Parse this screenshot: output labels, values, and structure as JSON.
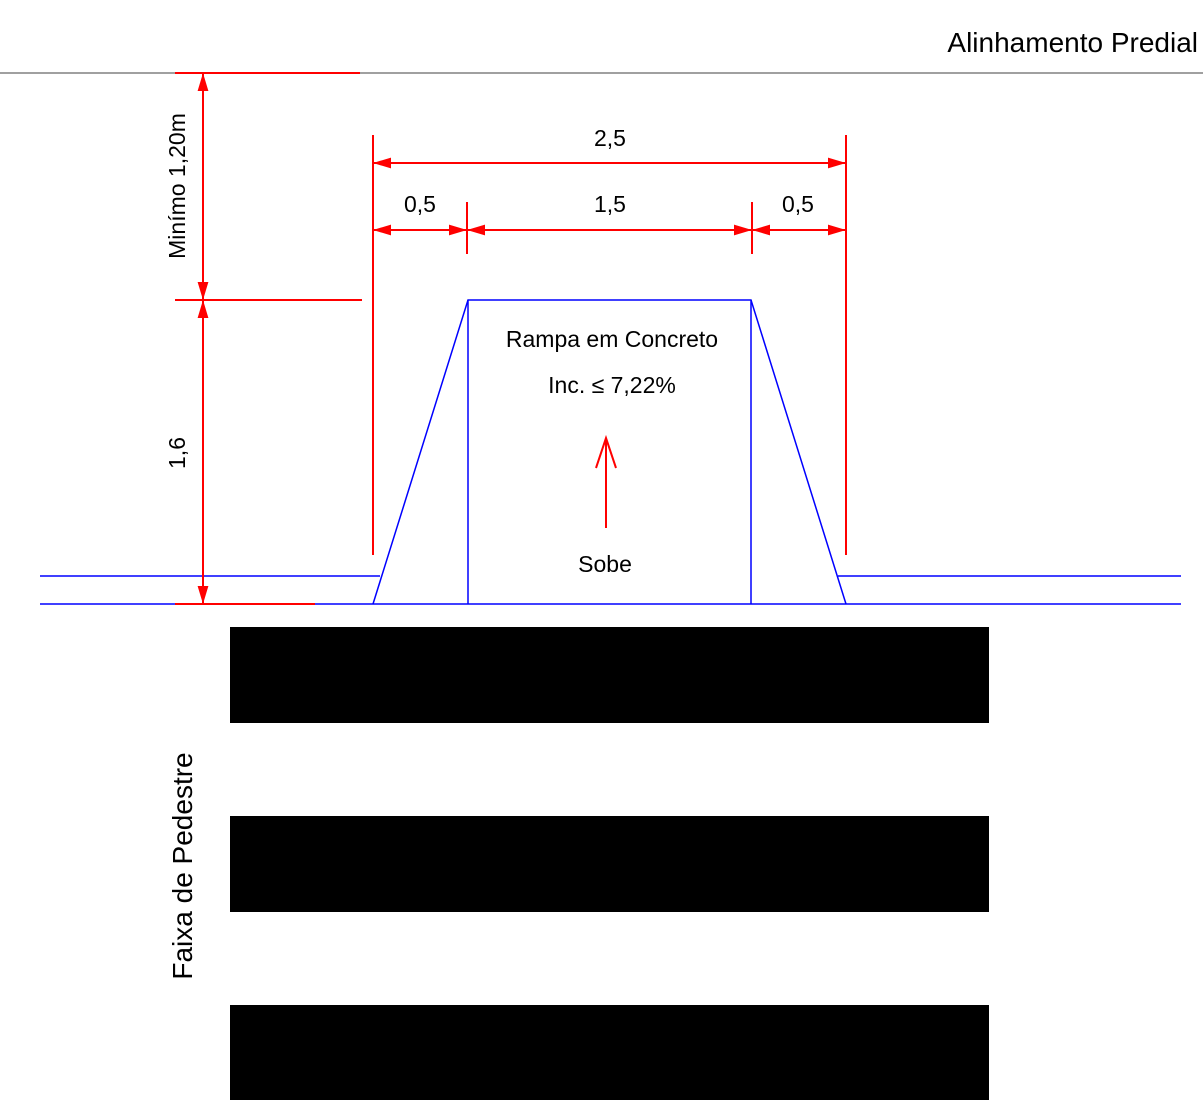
{
  "labels": {
    "building_line": "Alinhamento Predial",
    "min_distance": "Minímo 1,20m",
    "depth": "1,6",
    "total_width": "2,5",
    "left_flare": "0,5",
    "ramp_width": "1,5",
    "right_flare": "0,5",
    "ramp_title": "Rampa em Concreto",
    "ramp_slope": "Inc. ≤ 7,22%",
    "direction": "Sobe",
    "crosswalk": "Faixa de Pedestre"
  },
  "colors": {
    "dimension": "#ff0000",
    "outline": "#0000ff",
    "building_line": "#808080",
    "stripe": "#000000",
    "text": "#000000"
  },
  "icons": {
    "direction_arrow": "arrow-up-icon"
  }
}
